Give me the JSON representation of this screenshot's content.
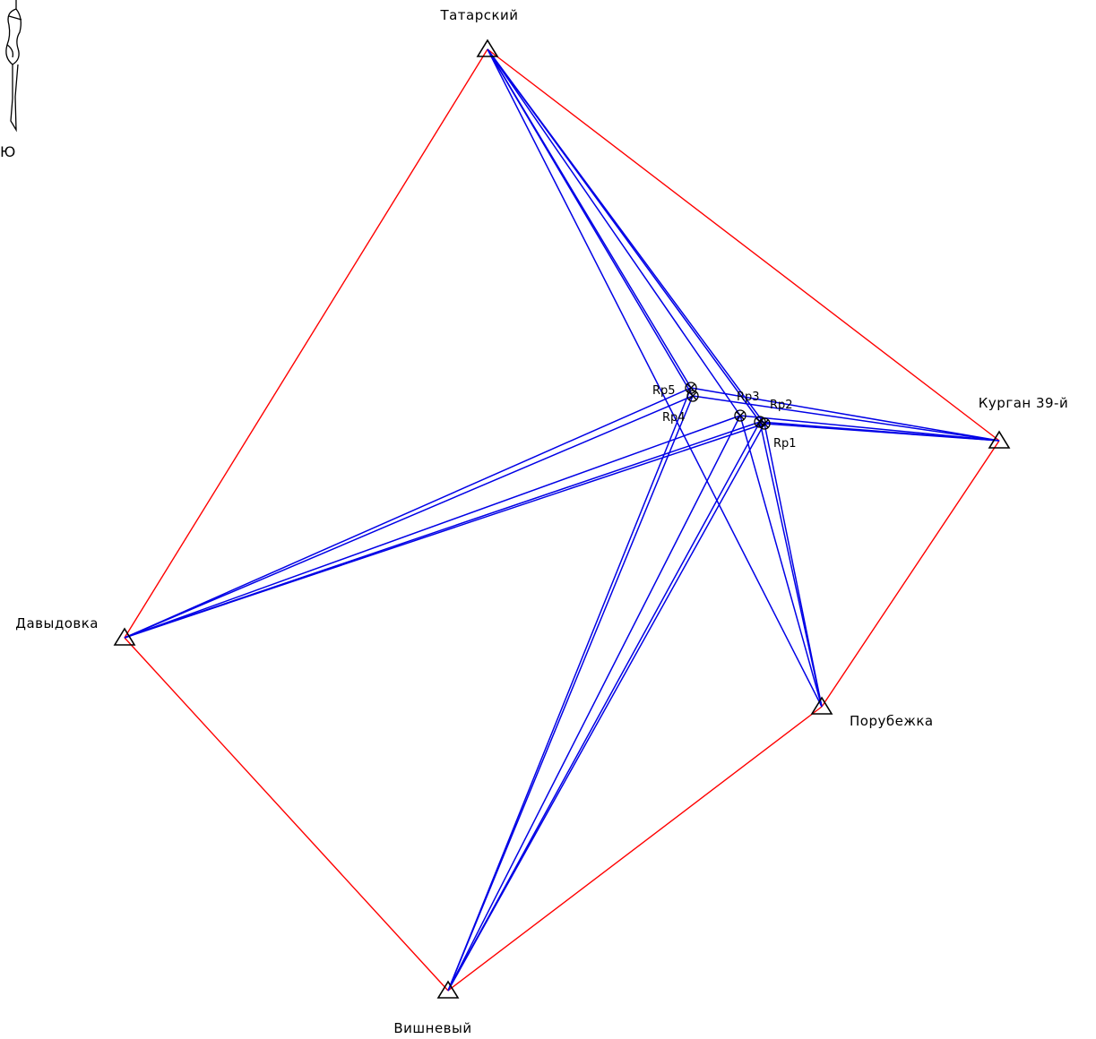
{
  "compass": {
    "label": "Ю",
    "icon": "north-arrow-icon"
  },
  "colors": {
    "outer_network": "#ff0000",
    "observations": "#0000e6",
    "marks": "#000000"
  },
  "stations": [
    {
      "id": "tatarsky",
      "name": "Татарский"
    },
    {
      "id": "kurgan39",
      "name": "Курган 39-й"
    },
    {
      "id": "porubezhka",
      "name": "Порубежка"
    },
    {
      "id": "vishnevy",
      "name": "Вишневый"
    },
    {
      "id": "davydovka",
      "name": "Давыдовка"
    }
  ],
  "benchmarks": [
    {
      "id": "rp1",
      "name": "Rp1"
    },
    {
      "id": "rp2",
      "name": "Rp2"
    },
    {
      "id": "rp3",
      "name": "Rp3"
    },
    {
      "id": "rp4",
      "name": "Rp4"
    },
    {
      "id": "rp5",
      "name": "Rp5"
    }
  ],
  "outer_network": [
    [
      "tatarsky",
      "kurgan39"
    ],
    [
      "kurgan39",
      "porubezhka"
    ],
    [
      "porubezhka",
      "vishnevy"
    ],
    [
      "vishnevy",
      "davydovka"
    ],
    [
      "davydovka",
      "tatarsky"
    ]
  ],
  "observations": [
    [
      "tatarsky",
      "rp5"
    ],
    [
      "tatarsky",
      "rp4"
    ],
    [
      "tatarsky",
      "rp3"
    ],
    [
      "tatarsky",
      "rp2"
    ],
    [
      "tatarsky",
      "rp1"
    ],
    [
      "tatarsky",
      "porubezhka"
    ],
    [
      "kurgan39",
      "rp5"
    ],
    [
      "kurgan39",
      "rp4"
    ],
    [
      "kurgan39",
      "rp3"
    ],
    [
      "kurgan39",
      "rp2"
    ],
    [
      "kurgan39",
      "rp1"
    ],
    [
      "porubezhka",
      "rp3"
    ],
    [
      "porubezhka",
      "rp2"
    ],
    [
      "porubezhka",
      "rp1"
    ],
    [
      "vishnevy",
      "rp5"
    ],
    [
      "vishnevy",
      "rp4"
    ],
    [
      "vishnevy",
      "rp3"
    ],
    [
      "vishnevy",
      "rp2"
    ],
    [
      "vishnevy",
      "rp1"
    ],
    [
      "davydovka",
      "rp5"
    ],
    [
      "davydovka",
      "rp4"
    ],
    [
      "davydovka",
      "rp3"
    ],
    [
      "davydovka",
      "rp2"
    ],
    [
      "davydovka",
      "rp1"
    ]
  ]
}
